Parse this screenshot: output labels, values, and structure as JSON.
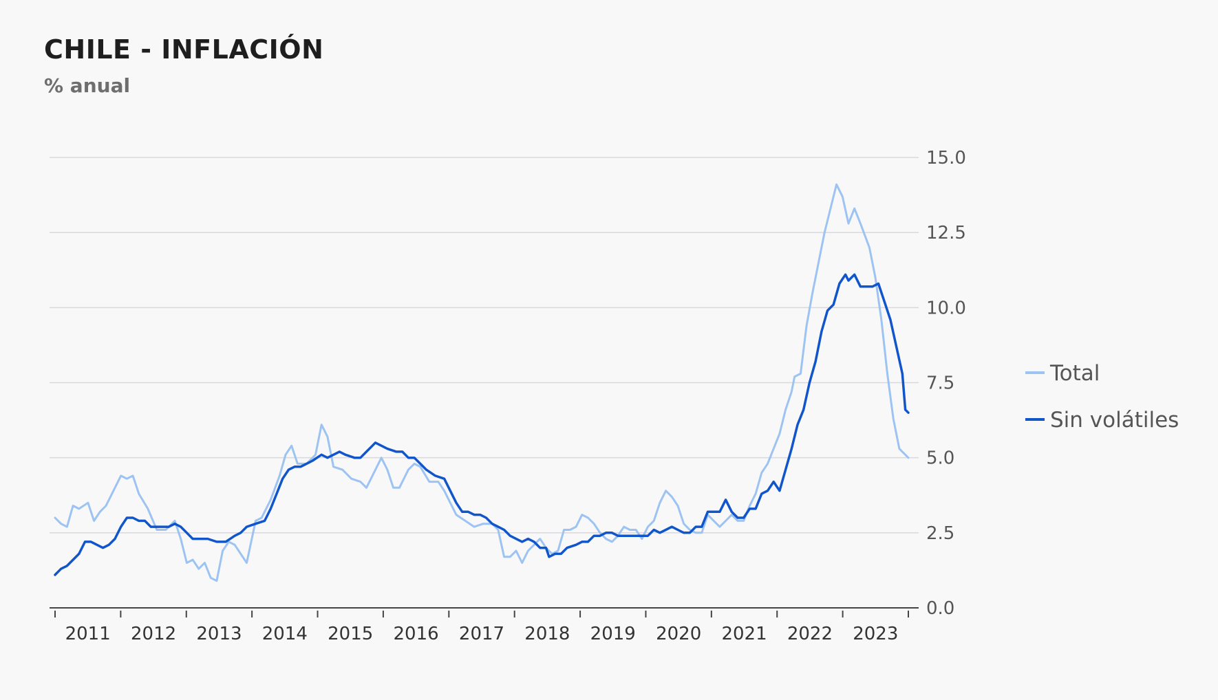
{
  "header": {
    "title": "CHILE - INFLACIÓN",
    "subtitle": "% anual"
  },
  "chart_data": {
    "type": "line",
    "title": "CHILE - INFLACIÓN",
    "subtitle": "% anual",
    "xlabel": "",
    "ylabel": "",
    "ylim": [
      0,
      15
    ],
    "yticks": [
      0,
      2.5,
      5,
      7.5,
      10,
      12.5,
      15
    ],
    "ytick_labels": [
      "0.0",
      "2.5",
      "5.0",
      "7.5",
      "10.0",
      "12.5",
      "15.0"
    ],
    "xlim": [
      2010,
      2023.833
    ],
    "xticks": [
      "2011",
      "2012",
      "2013",
      "2014",
      "2015",
      "2016",
      "2017",
      "2018",
      "2019",
      "2020",
      "2021",
      "2022",
      "2023"
    ],
    "y_axis_position": "right",
    "grid": "horizontal",
    "legend_position": "right",
    "series": [
      {
        "name": "Total",
        "color": "#9cc3f2",
        "points": [
          [
            2010.0,
            3.0
          ],
          [
            2010.1,
            2.8
          ],
          [
            2010.2,
            2.7
          ],
          [
            2010.3,
            3.4
          ],
          [
            2010.4,
            3.3
          ],
          [
            2010.55,
            3.5
          ],
          [
            2010.65,
            2.9
          ],
          [
            2010.75,
            3.2
          ],
          [
            2010.85,
            3.4
          ],
          [
            2010.95,
            3.8
          ],
          [
            2011.1,
            4.4
          ],
          [
            2011.2,
            4.3
          ],
          [
            2011.3,
            4.4
          ],
          [
            2011.4,
            3.8
          ],
          [
            2011.55,
            3.3
          ],
          [
            2011.7,
            2.6
          ],
          [
            2011.85,
            2.6
          ],
          [
            2012.0,
            2.9
          ],
          [
            2012.1,
            2.3
          ],
          [
            2012.2,
            1.5
          ],
          [
            2012.3,
            1.6
          ],
          [
            2012.4,
            1.3
          ],
          [
            2012.5,
            1.5
          ],
          [
            2012.6,
            1.0
          ],
          [
            2012.7,
            0.9
          ],
          [
            2012.8,
            1.9
          ],
          [
            2012.9,
            2.2
          ],
          [
            2013.0,
            2.1
          ],
          [
            2013.1,
            1.8
          ],
          [
            2013.2,
            1.5
          ],
          [
            2013.35,
            2.9
          ],
          [
            2013.45,
            3.0
          ],
          [
            2013.6,
            3.6
          ],
          [
            2013.75,
            4.4
          ],
          [
            2013.85,
            5.1
          ],
          [
            2013.95,
            5.4
          ],
          [
            2014.05,
            4.8
          ],
          [
            2014.2,
            4.8
          ],
          [
            2014.35,
            5.1
          ],
          [
            2014.45,
            6.1
          ],
          [
            2014.55,
            5.7
          ],
          [
            2014.65,
            4.7
          ],
          [
            2014.8,
            4.6
          ],
          [
            2014.95,
            4.3
          ],
          [
            2015.1,
            4.2
          ],
          [
            2015.2,
            4.0
          ],
          [
            2015.3,
            4.4
          ],
          [
            2015.45,
            5.0
          ],
          [
            2015.55,
            4.6
          ],
          [
            2015.65,
            4.0
          ],
          [
            2015.75,
            4.0
          ],
          [
            2015.9,
            4.6
          ],
          [
            2016.0,
            4.8
          ],
          [
            2016.1,
            4.7
          ],
          [
            2016.25,
            4.2
          ],
          [
            2016.4,
            4.2
          ],
          [
            2016.5,
            3.9
          ],
          [
            2016.6,
            3.5
          ],
          [
            2016.7,
            3.1
          ],
          [
            2016.85,
            2.9
          ],
          [
            2017.0,
            2.7
          ],
          [
            2017.15,
            2.8
          ],
          [
            2017.3,
            2.8
          ],
          [
            2017.4,
            2.6
          ],
          [
            2017.5,
            1.7
          ],
          [
            2017.6,
            1.7
          ],
          [
            2017.7,
            1.9
          ],
          [
            2017.8,
            1.5
          ],
          [
            2017.9,
            1.9
          ],
          [
            2018.0,
            2.1
          ],
          [
            2018.1,
            2.3
          ],
          [
            2018.2,
            2.0
          ],
          [
            2018.3,
            1.8
          ],
          [
            2018.4,
            1.9
          ],
          [
            2018.5,
            2.6
          ],
          [
            2018.6,
            2.6
          ],
          [
            2018.7,
            2.7
          ],
          [
            2018.8,
            3.1
          ],
          [
            2018.9,
            3.0
          ],
          [
            2019.0,
            2.8
          ],
          [
            2019.1,
            2.5
          ],
          [
            2019.2,
            2.3
          ],
          [
            2019.3,
            2.2
          ],
          [
            2019.4,
            2.4
          ],
          [
            2019.5,
            2.7
          ],
          [
            2019.6,
            2.6
          ],
          [
            2019.7,
            2.6
          ],
          [
            2019.8,
            2.3
          ],
          [
            2019.9,
            2.7
          ],
          [
            2020.0,
            2.9
          ],
          [
            2020.1,
            3.5
          ],
          [
            2020.2,
            3.9
          ],
          [
            2020.3,
            3.7
          ],
          [
            2020.4,
            3.4
          ],
          [
            2020.5,
            2.8
          ],
          [
            2020.6,
            2.6
          ],
          [
            2020.7,
            2.5
          ],
          [
            2020.8,
            2.5
          ],
          [
            2020.9,
            3.1
          ],
          [
            2021.0,
            2.9
          ],
          [
            2021.1,
            2.7
          ],
          [
            2021.2,
            2.9
          ],
          [
            2021.3,
            3.1
          ],
          [
            2021.4,
            2.9
          ],
          [
            2021.5,
            2.9
          ],
          [
            2021.6,
            3.4
          ],
          [
            2021.7,
            3.8
          ],
          [
            2021.8,
            4.5
          ],
          [
            2021.9,
            4.8
          ],
          [
            2022.0,
            5.3
          ],
          [
            2022.1,
            5.8
          ],
          [
            2022.2,
            6.6
          ],
          [
            2022.3,
            7.2
          ],
          [
            2022.35,
            7.7
          ],
          [
            2022.45,
            7.8
          ],
          [
            2022.55,
            9.4
          ],
          [
            2022.65,
            10.5
          ],
          [
            2022.75,
            11.5
          ],
          [
            2022.85,
            12.5
          ],
          [
            2022.95,
            13.3
          ],
          [
            2023.05,
            14.1
          ],
          [
            2023.15,
            13.7
          ],
          [
            2023.25,
            12.8
          ],
          [
            2023.35,
            13.3
          ],
          [
            2023.45,
            12.8
          ],
          [
            2023.6,
            12.0
          ],
          [
            2023.7,
            11.0
          ],
          [
            2023.8,
            9.6
          ],
          [
            2023.9,
            7.8
          ],
          [
            2024.0,
            6.3
          ],
          [
            2024.1,
            5.3
          ],
          [
            2024.2,
            5.1
          ],
          [
            2024.25,
            5.0
          ]
        ]
      },
      {
        "name": "Sin volátiles",
        "color": "#1055c9",
        "points": [
          [
            2010.0,
            1.1
          ],
          [
            2010.1,
            1.3
          ],
          [
            2010.2,
            1.4
          ],
          [
            2010.3,
            1.6
          ],
          [
            2010.4,
            1.8
          ],
          [
            2010.5,
            2.2
          ],
          [
            2010.6,
            2.2
          ],
          [
            2010.7,
            2.1
          ],
          [
            2010.8,
            2.0
          ],
          [
            2010.9,
            2.1
          ],
          [
            2011.0,
            2.3
          ],
          [
            2011.1,
            2.7
          ],
          [
            2011.2,
            3.0
          ],
          [
            2011.3,
            3.0
          ],
          [
            2011.4,
            2.9
          ],
          [
            2011.5,
            2.9
          ],
          [
            2011.6,
            2.7
          ],
          [
            2011.75,
            2.7
          ],
          [
            2011.9,
            2.7
          ],
          [
            2012.0,
            2.8
          ],
          [
            2012.1,
            2.7
          ],
          [
            2012.2,
            2.5
          ],
          [
            2012.3,
            2.3
          ],
          [
            2012.4,
            2.3
          ],
          [
            2012.55,
            2.3
          ],
          [
            2012.7,
            2.2
          ],
          [
            2012.85,
            2.2
          ],
          [
            2013.0,
            2.4
          ],
          [
            2013.1,
            2.5
          ],
          [
            2013.2,
            2.7
          ],
          [
            2013.35,
            2.8
          ],
          [
            2013.5,
            2.9
          ],
          [
            2013.6,
            3.3
          ],
          [
            2013.7,
            3.8
          ],
          [
            2013.8,
            4.3
          ],
          [
            2013.9,
            4.6
          ],
          [
            2014.0,
            4.7
          ],
          [
            2014.1,
            4.7
          ],
          [
            2014.2,
            4.8
          ],
          [
            2014.3,
            4.9
          ],
          [
            2014.45,
            5.1
          ],
          [
            2014.55,
            5.0
          ],
          [
            2014.65,
            5.1
          ],
          [
            2014.75,
            5.2
          ],
          [
            2014.85,
            5.1
          ],
          [
            2015.0,
            5.0
          ],
          [
            2015.1,
            5.0
          ],
          [
            2015.2,
            5.2
          ],
          [
            2015.3,
            5.4
          ],
          [
            2015.35,
            5.5
          ],
          [
            2015.45,
            5.4
          ],
          [
            2015.55,
            5.3
          ],
          [
            2015.7,
            5.2
          ],
          [
            2015.8,
            5.2
          ],
          [
            2015.9,
            5.0
          ],
          [
            2016.0,
            5.0
          ],
          [
            2016.1,
            4.8
          ],
          [
            2016.2,
            4.6
          ],
          [
            2016.35,
            4.4
          ],
          [
            2016.5,
            4.3
          ],
          [
            2016.6,
            3.9
          ],
          [
            2016.7,
            3.5
          ],
          [
            2016.8,
            3.2
          ],
          [
            2016.9,
            3.2
          ],
          [
            2017.0,
            3.1
          ],
          [
            2017.1,
            3.1
          ],
          [
            2017.2,
            3.0
          ],
          [
            2017.3,
            2.8
          ],
          [
            2017.4,
            2.7
          ],
          [
            2017.5,
            2.6
          ],
          [
            2017.6,
            2.4
          ],
          [
            2017.7,
            2.3
          ],
          [
            2017.8,
            2.2
          ],
          [
            2017.9,
            2.3
          ],
          [
            2018.0,
            2.2
          ],
          [
            2018.1,
            2.0
          ],
          [
            2018.2,
            2.0
          ],
          [
            2018.25,
            1.7
          ],
          [
            2018.35,
            1.8
          ],
          [
            2018.45,
            1.8
          ],
          [
            2018.55,
            2.0
          ],
          [
            2018.7,
            2.1
          ],
          [
            2018.8,
            2.2
          ],
          [
            2018.9,
            2.2
          ],
          [
            2019.0,
            2.4
          ],
          [
            2019.1,
            2.4
          ],
          [
            2019.2,
            2.5
          ],
          [
            2019.3,
            2.5
          ],
          [
            2019.4,
            2.4
          ],
          [
            2019.55,
            2.4
          ],
          [
            2019.7,
            2.4
          ],
          [
            2019.8,
            2.4
          ],
          [
            2019.9,
            2.4
          ],
          [
            2020.0,
            2.6
          ],
          [
            2020.1,
            2.5
          ],
          [
            2020.2,
            2.6
          ],
          [
            2020.3,
            2.7
          ],
          [
            2020.4,
            2.6
          ],
          [
            2020.5,
            2.5
          ],
          [
            2020.6,
            2.5
          ],
          [
            2020.7,
            2.7
          ],
          [
            2020.8,
            2.7
          ],
          [
            2020.9,
            3.2
          ],
          [
            2021.0,
            3.2
          ],
          [
            2021.1,
            3.2
          ],
          [
            2021.2,
            3.6
          ],
          [
            2021.3,
            3.2
          ],
          [
            2021.4,
            3.0
          ],
          [
            2021.5,
            3.0
          ],
          [
            2021.6,
            3.3
          ],
          [
            2021.7,
            3.3
          ],
          [
            2021.8,
            3.8
          ],
          [
            2021.9,
            3.9
          ],
          [
            2022.0,
            4.2
          ],
          [
            2022.1,
            3.9
          ],
          [
            2022.2,
            4.6
          ],
          [
            2022.3,
            5.3
          ],
          [
            2022.4,
            6.1
          ],
          [
            2022.5,
            6.6
          ],
          [
            2022.6,
            7.5
          ],
          [
            2022.7,
            8.2
          ],
          [
            2022.8,
            9.2
          ],
          [
            2022.9,
            9.9
          ],
          [
            2023.0,
            10.1
          ],
          [
            2023.1,
            10.8
          ],
          [
            2023.2,
            11.1
          ],
          [
            2023.25,
            10.9
          ],
          [
            2023.35,
            11.1
          ],
          [
            2023.45,
            10.7
          ],
          [
            2023.55,
            10.7
          ],
          [
            2023.65,
            10.7
          ],
          [
            2023.75,
            10.8
          ],
          [
            2023.85,
            10.2
          ],
          [
            2023.95,
            9.6
          ],
          [
            2024.05,
            8.7
          ],
          [
            2024.15,
            7.8
          ],
          [
            2024.2,
            6.6
          ],
          [
            2024.25,
            6.5
          ]
        ]
      }
    ]
  }
}
